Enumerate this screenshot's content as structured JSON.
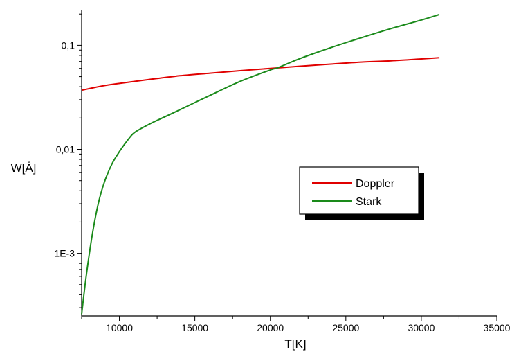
{
  "chart_data": {
    "type": "line",
    "title": "",
    "xlabel": "T[K]",
    "ylabel": "W[Å]",
    "xlim": [
      7500,
      35000
    ],
    "ylim": [
      0.00025,
      0.22
    ],
    "yscale": "log",
    "grid": false,
    "legend_position": "center-right",
    "x_ticks": [
      10000,
      15000,
      20000,
      25000,
      30000,
      35000
    ],
    "x_tick_labels": [
      "10000",
      "15000",
      "20000",
      "25000",
      "30000",
      "35000"
    ],
    "y_ticks": [
      0.001,
      0.01,
      0.1
    ],
    "y_tick_labels": [
      "1E-3",
      "0,01",
      "0,1"
    ],
    "series": [
      {
        "name": "Doppler",
        "color": "#e00000",
        "x": [
          7500,
          9000,
          10000,
          12000,
          14000,
          16000,
          18000,
          20000,
          22000,
          24000,
          26000,
          28000,
          30000,
          31200
        ],
        "y": [
          0.037,
          0.041,
          0.043,
          0.047,
          0.051,
          0.054,
          0.057,
          0.06,
          0.063,
          0.066,
          0.069,
          0.071,
          0.074,
          0.076
        ]
      },
      {
        "name": "Stark",
        "color": "#1a8a1a",
        "x": [
          7500,
          7800,
          8200,
          8600,
          9000,
          9500,
          10000,
          10500,
          11000,
          12000,
          13000,
          14000,
          16000,
          18000,
          20000,
          20500,
          22000,
          24000,
          26000,
          28000,
          30000,
          31200
        ],
        "y": [
          0.00026,
          0.0006,
          0.0015,
          0.003,
          0.0048,
          0.0072,
          0.0095,
          0.012,
          0.0145,
          0.0175,
          0.0205,
          0.024,
          0.033,
          0.045,
          0.058,
          0.061,
          0.075,
          0.095,
          0.118,
          0.145,
          0.175,
          0.198
        ]
      }
    ]
  }
}
